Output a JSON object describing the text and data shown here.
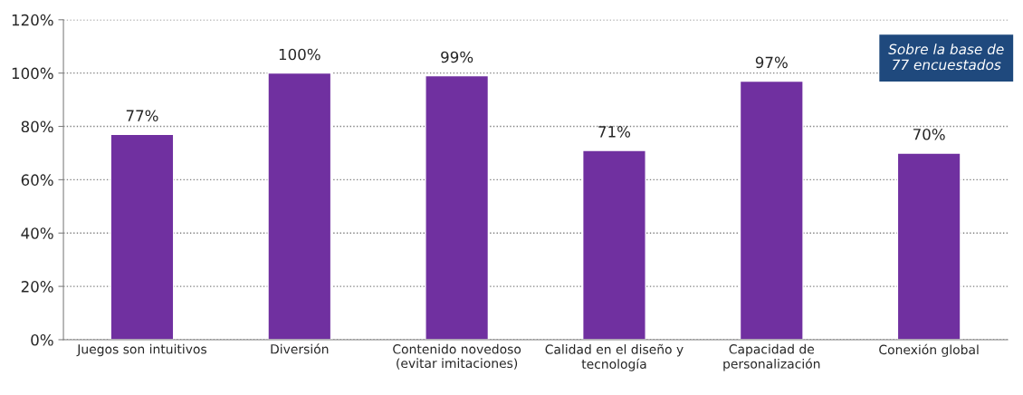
{
  "chart_data": {
    "type": "bar",
    "categories": [
      "Juegos son intuitivos",
      "Diversión",
      "Contenido novedoso (evitar imitaciones)",
      "Calidad en el diseño y tecnología",
      "Capacidad de personalización",
      "Conexión global"
    ],
    "values": [
      77,
      100,
      99,
      71,
      97,
      70
    ],
    "value_labels": [
      "77%",
      "100%",
      "99%",
      "71%",
      "97%",
      "70%"
    ],
    "color": "#7030a0",
    "ylim": [
      0,
      120
    ],
    "yticks": [
      {
        "value": 0,
        "label": "0%"
      },
      {
        "value": 20,
        "label": "20%"
      },
      {
        "value": 40,
        "label": "40%"
      },
      {
        "value": 60,
        "label": "60%"
      },
      {
        "value": 80,
        "label": "80%"
      },
      {
        "value": 100,
        "label": "100%"
      },
      {
        "value": 120,
        "label": "120%"
      }
    ],
    "grid": "y",
    "annotations": [
      "Sobre la base de 77 encuestados"
    ]
  }
}
